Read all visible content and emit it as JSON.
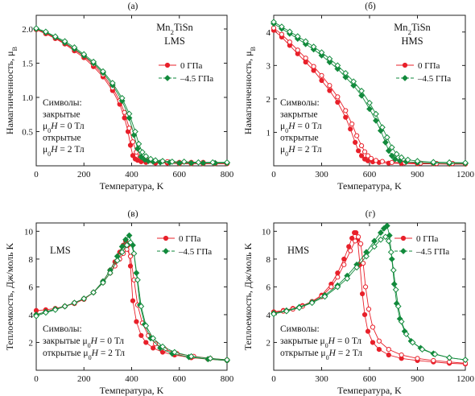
{
  "colors": {
    "red": "#e8202a",
    "green": "#128a3c",
    "axis": "#222222"
  },
  "chart_data": [
    {
      "panel": "(a)",
      "type": "scatter",
      "title": "Mn2TiSn",
      "subtitle": "LMS",
      "xlabel": "Температура, K",
      "ylabel": "Намагниченность, μB",
      "xlim": [
        0,
        800
      ],
      "ylim": [
        0,
        2.2
      ],
      "xticks": [
        0,
        200,
        400,
        600,
        800
      ],
      "yticks": [
        0.5,
        1.0,
        1.5,
        2.0
      ],
      "yticklabels": [
        "0.5",
        "1.0",
        "1.5",
        "2.0"
      ],
      "legend": {
        "placement": "right",
        "entries": [
          "0 ГПа",
          "–4.5 ГПа"
        ]
      },
      "note": [
        "Символы:",
        "закрытые",
        "μ0H = 0 Тл",
        "открытые",
        "μ0H = 2 Тл"
      ],
      "series": [
        {
          "name": "0 ГПа",
          "color": "red",
          "marker": "circle",
          "field_T": 0,
          "x": [
            0,
            40,
            80,
            120,
            160,
            200,
            240,
            280,
            320,
            350,
            370,
            385,
            395,
            405,
            415,
            425,
            440,
            460,
            500,
            550,
            600,
            650,
            700,
            750,
            800
          ],
          "y": [
            1.99,
            1.93,
            1.86,
            1.78,
            1.68,
            1.58,
            1.45,
            1.3,
            1.1,
            0.9,
            0.7,
            0.5,
            0.3,
            0.15,
            0.1,
            0.08,
            0.06,
            0.05,
            0.04,
            0.04,
            0.03,
            0.03,
            0.03,
            0.03,
            0.03
          ]
        },
        {
          "name": "0 ГПа",
          "color": "red",
          "marker": "circle-open",
          "field_T": 2,
          "x": [
            0,
            40,
            80,
            120,
            160,
            200,
            240,
            280,
            320,
            350,
            370,
            390,
            405,
            420,
            435,
            450,
            470,
            500,
            550,
            600,
            650,
            700,
            750,
            800
          ],
          "y": [
            2.0,
            1.94,
            1.87,
            1.79,
            1.7,
            1.6,
            1.48,
            1.33,
            1.14,
            0.95,
            0.78,
            0.55,
            0.35,
            0.2,
            0.13,
            0.1,
            0.08,
            0.07,
            0.06,
            0.05,
            0.05,
            0.05,
            0.04,
            0.04
          ]
        },
        {
          "name": "–4.5 ГПа",
          "color": "green",
          "marker": "diamond",
          "field_T": 0,
          "x": [
            0,
            40,
            80,
            120,
            160,
            200,
            240,
            280,
            320,
            360,
            390,
            410,
            425,
            440,
            455,
            470,
            490,
            520,
            560,
            600,
            650,
            700,
            750,
            800
          ],
          "y": [
            2.0,
            1.95,
            1.88,
            1.8,
            1.71,
            1.61,
            1.5,
            1.36,
            1.18,
            0.95,
            0.7,
            0.45,
            0.25,
            0.13,
            0.09,
            0.07,
            0.06,
            0.05,
            0.05,
            0.04,
            0.04,
            0.04,
            0.04,
            0.04
          ]
        },
        {
          "name": "–4.5 ГПа",
          "color": "green",
          "marker": "diamond-open",
          "field_T": 2,
          "x": [
            0,
            40,
            80,
            120,
            160,
            200,
            240,
            280,
            320,
            360,
            390,
            415,
            430,
            445,
            460,
            480,
            500,
            530,
            570,
            620,
            680,
            740,
            800
          ],
          "y": [
            2.01,
            1.96,
            1.89,
            1.82,
            1.73,
            1.63,
            1.52,
            1.38,
            1.21,
            0.99,
            0.76,
            0.5,
            0.32,
            0.2,
            0.14,
            0.1,
            0.08,
            0.07,
            0.06,
            0.06,
            0.05,
            0.05,
            0.05
          ]
        }
      ]
    },
    {
      "panel": "(б)",
      "type": "scatter",
      "title": "Mn2TiSn",
      "subtitle": "HMS",
      "xlabel": "Температура, K",
      "ylabel": "Намагниченность, μB",
      "xlim": [
        0,
        1200
      ],
      "ylim": [
        0,
        4.5
      ],
      "xticks": [
        0,
        300,
        600,
        900,
        1200
      ],
      "yticks": [
        1,
        2,
        3,
        4
      ],
      "yticklabels": [
        "1",
        "2",
        "3",
        "4"
      ],
      "legend": {
        "placement": "right",
        "entries": [
          "0 ГПа",
          "–4.5 ГПа"
        ]
      },
      "note": [
        "Символы:",
        "закрытые",
        "μ0H = 0 Тл",
        "открытые",
        "μ0H = 2 Тл"
      ],
      "series": [
        {
          "name": "0 ГПа",
          "color": "red",
          "marker": "circle",
          "field_T": 0,
          "x": [
            0,
            50,
            100,
            150,
            200,
            250,
            300,
            350,
            400,
            450,
            480,
            510,
            530,
            550,
            570,
            590,
            620,
            660,
            720,
            800,
            900,
            1000,
            1100,
            1200
          ],
          "y": [
            4.05,
            3.85,
            3.6,
            3.35,
            3.1,
            2.85,
            2.55,
            2.25,
            1.9,
            1.45,
            1.1,
            0.7,
            0.45,
            0.3,
            0.2,
            0.15,
            0.12,
            0.1,
            0.08,
            0.07,
            0.06,
            0.06,
            0.05,
            0.05
          ]
        },
        {
          "name": "0 ГПа",
          "color": "red",
          "marker": "circle-open",
          "field_T": 2,
          "x": [
            0,
            50,
            100,
            150,
            200,
            250,
            300,
            350,
            400,
            450,
            490,
            520,
            550,
            570,
            590,
            610,
            640,
            680,
            740,
            820,
            920,
            1020,
            1120,
            1200
          ],
          "y": [
            4.12,
            3.93,
            3.7,
            3.46,
            3.22,
            2.97,
            2.7,
            2.4,
            2.06,
            1.65,
            1.25,
            0.9,
            0.6,
            0.42,
            0.3,
            0.22,
            0.16,
            0.13,
            0.1,
            0.09,
            0.08,
            0.07,
            0.07,
            0.06
          ]
        },
        {
          "name": "–4.5 ГПа",
          "color": "green",
          "marker": "diamond",
          "field_T": 0,
          "x": [
            0,
            50,
            100,
            150,
            200,
            250,
            300,
            350,
            400,
            450,
            500,
            550,
            600,
            640,
            670,
            700,
            720,
            740,
            760,
            790,
            830,
            900,
            1000,
            1100,
            1200
          ],
          "y": [
            4.25,
            4.1,
            3.95,
            3.8,
            3.64,
            3.48,
            3.3,
            3.1,
            2.9,
            2.65,
            2.4,
            2.1,
            1.7,
            1.35,
            1.05,
            0.7,
            0.45,
            0.3,
            0.2,
            0.15,
            0.12,
            0.1,
            0.08,
            0.07,
            0.07
          ]
        },
        {
          "name": "–4.5 ГПа",
          "color": "green",
          "marker": "diamond-open",
          "field_T": 2,
          "x": [
            0,
            50,
            100,
            150,
            200,
            250,
            300,
            350,
            400,
            450,
            500,
            550,
            600,
            640,
            680,
            710,
            740,
            770,
            800,
            840,
            900,
            1000,
            1100,
            1200
          ],
          "y": [
            4.3,
            4.16,
            4.01,
            3.87,
            3.72,
            3.56,
            3.39,
            3.2,
            3.0,
            2.77,
            2.52,
            2.24,
            1.88,
            1.55,
            1.15,
            0.85,
            0.55,
            0.35,
            0.25,
            0.18,
            0.14,
            0.11,
            0.1,
            0.09
          ]
        }
      ]
    },
    {
      "panel": "(в)",
      "type": "scatter",
      "title": "LMS",
      "subtitle": "",
      "xlabel": "Температура, K",
      "ylabel": "Теплоемкость, Дж/моль K",
      "xlim": [
        0,
        800
      ],
      "ylim": [
        0,
        10.6
      ],
      "xticks": [
        0,
        200,
        400,
        600,
        800
      ],
      "yticks": [
        2,
        4,
        6,
        8,
        10
      ],
      "yticklabels": [
        "2",
        "4",
        "6",
        "8",
        "10"
      ],
      "legend": {
        "placement": "top-right",
        "entries": [
          "0 ГПа",
          "–4.5 ГПа"
        ]
      },
      "note": [
        "Символы:",
        "закрытые μ0H = 0 Тл",
        "открытые μ0H = 2 Тл"
      ],
      "series": [
        {
          "name": "0 ГПа",
          "color": "red",
          "marker": "circle",
          "field_T": 0,
          "x": [
            0,
            40,
            80,
            120,
            160,
            200,
            240,
            280,
            310,
            330,
            350,
            365,
            375,
            385,
            395,
            405,
            420,
            440,
            460,
            490,
            530,
            580,
            650,
            720,
            800
          ],
          "y": [
            4.3,
            4.35,
            4.45,
            4.6,
            4.8,
            5.1,
            5.6,
            6.4,
            7.2,
            7.8,
            8.5,
            9.0,
            9.3,
            9.0,
            7.5,
            5.0,
            3.5,
            2.5,
            2.0,
            1.6,
            1.3,
            1.1,
            0.9,
            0.8,
            0.7
          ]
        },
        {
          "name": "0 ГПа",
          "color": "red",
          "marker": "circle-open",
          "field_T": 2,
          "x": [
            0,
            40,
            80,
            120,
            160,
            200,
            240,
            280,
            310,
            330,
            350,
            365,
            380,
            395,
            410,
            425,
            445,
            470,
            500,
            540,
            590,
            660,
            730,
            800
          ],
          "y": [
            4.0,
            4.2,
            4.4,
            4.6,
            4.85,
            5.15,
            5.6,
            6.3,
            7.0,
            7.5,
            8.0,
            8.4,
            8.7,
            8.2,
            6.5,
            4.7,
            3.4,
            2.5,
            1.9,
            1.5,
            1.2,
            1.0,
            0.85,
            0.75
          ]
        },
        {
          "name": "–4.5 ГПа",
          "color": "green",
          "marker": "diamond",
          "field_T": 0,
          "x": [
            0,
            40,
            80,
            120,
            160,
            200,
            240,
            280,
            310,
            340,
            360,
            375,
            390,
            405,
            420,
            435,
            455,
            480,
            520,
            570,
            640,
            720,
            800
          ],
          "y": [
            4.0,
            4.2,
            4.4,
            4.6,
            4.85,
            5.15,
            5.6,
            6.4,
            7.2,
            8.2,
            8.9,
            9.4,
            9.7,
            9.0,
            7.0,
            4.7,
            3.3,
            2.3,
            1.6,
            1.2,
            0.95,
            0.8,
            0.7
          ]
        },
        {
          "name": "–4.5 ГПа",
          "color": "green",
          "marker": "diamond-open",
          "field_T": 2,
          "x": [
            0,
            40,
            80,
            120,
            160,
            200,
            240,
            280,
            310,
            340,
            360,
            380,
            395,
            410,
            425,
            440,
            460,
            490,
            530,
            580,
            650,
            730,
            800
          ],
          "y": [
            3.9,
            4.15,
            4.35,
            4.6,
            4.85,
            5.15,
            5.6,
            6.3,
            7.0,
            7.9,
            8.5,
            9.0,
            9.2,
            8.4,
            6.5,
            4.6,
            3.2,
            2.3,
            1.7,
            1.3,
            1.0,
            0.85,
            0.75
          ]
        }
      ]
    },
    {
      "panel": "(г)",
      "type": "scatter",
      "title": "HMS",
      "subtitle": "",
      "xlabel": "Температура, K",
      "ylabel": "Теплоемкость, Дж/моль K",
      "xlim": [
        0,
        1200
      ],
      "ylim": [
        0,
        10.6
      ],
      "xticks": [
        0,
        300,
        600,
        900,
        1200
      ],
      "yticks": [
        2,
        4,
        6,
        8,
        10
      ],
      "yticklabels": [
        "2",
        "4",
        "6",
        "8",
        "10"
      ],
      "legend": {
        "placement": "top-right",
        "entries": [
          "0 ГПа",
          "–4.5 ГПа"
        ]
      },
      "note": [
        "Символы:",
        "закрытые μ0H = 0 Тл",
        "открытые μ0H = 2 Тл"
      ],
      "series": [
        {
          "name": "0 ГПа",
          "color": "red",
          "marker": "circle",
          "field_T": 0,
          "x": [
            0,
            60,
            120,
            180,
            240,
            300,
            360,
            400,
            440,
            470,
            490,
            505,
            515,
            525,
            540,
            555,
            570,
            590,
            620,
            660,
            720,
            800,
            900,
            1000,
            1100,
            1200
          ],
          "y": [
            4.2,
            4.3,
            4.45,
            4.65,
            4.95,
            5.4,
            6.2,
            7.0,
            8.0,
            8.9,
            9.5,
            9.9,
            9.9,
            9.4,
            7.6,
            5.5,
            4.0,
            2.8,
            2.0,
            1.5,
            1.1,
            0.85,
            0.7,
            0.6,
            0.5,
            0.45
          ]
        },
        {
          "name": "0 ГПа",
          "color": "red",
          "marker": "circle-open",
          "field_T": 2,
          "x": [
            0,
            60,
            120,
            180,
            240,
            300,
            360,
            400,
            440,
            480,
            510,
            530,
            545,
            560,
            575,
            595,
            620,
            660,
            720,
            800,
            900,
            1000,
            1100,
            1200
          ],
          "y": [
            4.15,
            4.25,
            4.4,
            4.6,
            4.9,
            5.3,
            6.0,
            6.7,
            7.6,
            8.6,
            9.3,
            9.6,
            9.1,
            7.7,
            6.0,
            4.4,
            3.1,
            2.1,
            1.5,
            1.1,
            0.85,
            0.7,
            0.6,
            0.5
          ]
        },
        {
          "name": "–4.5 ГПа",
          "color": "green",
          "marker": "diamond",
          "field_T": 0,
          "x": [
            0,
            80,
            160,
            240,
            320,
            400,
            460,
            520,
            580,
            630,
            670,
            690,
            710,
            725,
            740,
            755,
            770,
            790,
            820,
            860,
            920,
            1000,
            1100,
            1200
          ],
          "y": [
            4.1,
            4.3,
            4.55,
            4.9,
            5.4,
            6.1,
            6.8,
            7.6,
            8.5,
            9.3,
            9.9,
            10.2,
            10.4,
            9.7,
            8.0,
            6.2,
            4.8,
            3.7,
            2.8,
            2.1,
            1.6,
            1.2,
            0.9,
            0.75
          ]
        },
        {
          "name": "–4.5 ГПа",
          "color": "green",
          "marker": "diamond-open",
          "field_T": 2,
          "x": [
            0,
            80,
            160,
            240,
            320,
            400,
            460,
            520,
            580,
            630,
            670,
            700,
            720,
            735,
            750,
            765,
            780,
            800,
            830,
            870,
            930,
            1010,
            1100,
            1200
          ],
          "y": [
            4.05,
            4.25,
            4.5,
            4.85,
            5.3,
            6.0,
            6.6,
            7.4,
            8.2,
            8.9,
            9.4,
            9.6,
            9.3,
            8.5,
            7.2,
            5.8,
            4.6,
            3.5,
            2.6,
            2.0,
            1.5,
            1.15,
            0.9,
            0.75
          ]
        }
      ]
    }
  ]
}
